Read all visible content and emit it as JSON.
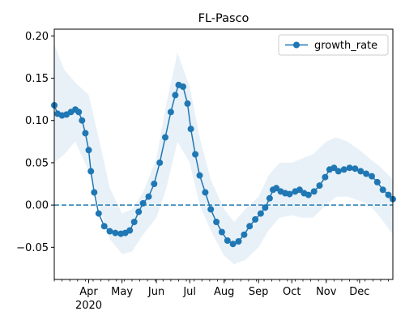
{
  "colors": {
    "series": "#1f77b4",
    "band": "#1f77b4",
    "zero_line": "#1f77b4",
    "axes": "#000000",
    "background": "#ffffff"
  },
  "chart_data": {
    "type": "line",
    "title": "FL-Pasco",
    "xlabel": "",
    "ylabel": "",
    "x_axis": {
      "type": "date",
      "range": [
        "2020-03-01",
        "2020-12-31"
      ],
      "tick_labels": [
        {
          "date": "2020-04-01",
          "label": "Apr",
          "sublabel": "2020"
        },
        {
          "date": "2020-05-01",
          "label": "May"
        },
        {
          "date": "2020-06-01",
          "label": "Jun"
        },
        {
          "date": "2020-07-01",
          "label": "Jul"
        },
        {
          "date": "2020-08-01",
          "label": "Aug"
        },
        {
          "date": "2020-09-01",
          "label": "Sep"
        },
        {
          "date": "2020-10-01",
          "label": "Oct"
        },
        {
          "date": "2020-11-01",
          "label": "Nov"
        },
        {
          "date": "2020-12-01",
          "label": "Dec"
        }
      ]
    },
    "y_axis": {
      "range": [
        -0.088,
        0.208
      ],
      "ticks": [
        -0.05,
        0.0,
        0.05,
        0.1,
        0.15,
        0.2
      ],
      "tick_labels": [
        "−0.05",
        "0.00",
        "0.05",
        "0.10",
        "0.15",
        "0.20"
      ]
    },
    "legend": {
      "position": "top-right",
      "entries": [
        "growth_rate"
      ]
    },
    "reference_line": {
      "y": 0.0,
      "style": "dashed"
    },
    "grid": false,
    "series": [
      {
        "name": "growth_rate",
        "marker": "circle",
        "x": [
          "2020-03-01",
          "2020-03-04",
          "2020-03-08",
          "2020-03-12",
          "2020-03-16",
          "2020-03-20",
          "2020-03-23",
          "2020-03-26",
          "2020-03-29",
          "2020-04-01",
          "2020-04-03",
          "2020-04-06",
          "2020-04-10",
          "2020-04-15",
          "2020-04-20",
          "2020-04-25",
          "2020-04-30",
          "2020-05-04",
          "2020-05-08",
          "2020-05-12",
          "2020-05-16",
          "2020-05-20",
          "2020-05-25",
          "2020-05-30",
          "2020-06-04",
          "2020-06-09",
          "2020-06-14",
          "2020-06-18",
          "2020-06-21",
          "2020-06-25",
          "2020-06-29",
          "2020-07-02",
          "2020-07-06",
          "2020-07-10",
          "2020-07-15",
          "2020-07-20",
          "2020-07-25",
          "2020-07-30",
          "2020-08-04",
          "2020-08-09",
          "2020-08-14",
          "2020-08-19",
          "2020-08-24",
          "2020-08-29",
          "2020-09-03",
          "2020-09-07",
          "2020-09-11",
          "2020-09-14",
          "2020-09-17",
          "2020-09-21",
          "2020-09-25",
          "2020-09-29",
          "2020-10-04",
          "2020-10-08",
          "2020-10-12",
          "2020-10-16",
          "2020-10-21",
          "2020-10-26",
          "2020-10-31",
          "2020-11-04",
          "2020-11-08",
          "2020-11-12",
          "2020-11-17",
          "2020-11-22",
          "2020-11-27",
          "2020-12-02",
          "2020-12-07",
          "2020-12-12",
          "2020-12-17",
          "2020-12-22",
          "2020-12-27",
          "2020-12-31"
        ],
        "y": [
          0.118,
          0.108,
          0.106,
          0.107,
          0.11,
          0.113,
          0.11,
          0.1,
          0.085,
          0.065,
          0.04,
          0.015,
          -0.01,
          -0.025,
          -0.031,
          -0.033,
          -0.034,
          -0.033,
          -0.03,
          -0.02,
          -0.008,
          0.002,
          0.01,
          0.025,
          0.05,
          0.08,
          0.11,
          0.13,
          0.142,
          0.14,
          0.12,
          0.09,
          0.06,
          0.035,
          0.015,
          -0.005,
          -0.02,
          -0.032,
          -0.042,
          -0.046,
          -0.043,
          -0.035,
          -0.025,
          -0.017,
          -0.01,
          -0.003,
          0.008,
          0.018,
          0.02,
          0.016,
          0.014,
          0.013,
          0.016,
          0.018,
          0.014,
          0.012,
          0.016,
          0.023,
          0.033,
          0.042,
          0.044,
          0.04,
          0.042,
          0.044,
          0.043,
          0.04,
          0.037,
          0.034,
          0.027,
          0.018,
          0.012,
          0.007
        ]
      }
    ],
    "confidence_band": {
      "x": [
        "2020-03-01",
        "2020-03-10",
        "2020-03-20",
        "2020-04-01",
        "2020-04-10",
        "2020-04-20",
        "2020-05-01",
        "2020-05-10",
        "2020-05-20",
        "2020-06-01",
        "2020-06-10",
        "2020-06-20",
        "2020-07-01",
        "2020-07-10",
        "2020-07-20",
        "2020-08-01",
        "2020-08-10",
        "2020-08-20",
        "2020-09-01",
        "2020-09-10",
        "2020-09-20",
        "2020-10-01",
        "2020-10-10",
        "2020-10-20",
        "2020-11-01",
        "2020-11-10",
        "2020-11-20",
        "2020-12-01",
        "2020-12-10",
        "2020-12-20",
        "2020-12-31"
      ],
      "lower": [
        0.05,
        0.06,
        0.075,
        0.04,
        0.0,
        -0.04,
        -0.058,
        -0.055,
        -0.035,
        -0.015,
        0.02,
        0.075,
        0.05,
        0.0,
        -0.03,
        -0.06,
        -0.07,
        -0.065,
        -0.05,
        -0.03,
        -0.015,
        -0.012,
        -0.015,
        -0.015,
        0.0,
        0.01,
        0.01,
        0.005,
        0.0,
        -0.015,
        -0.035
      ],
      "upper": [
        0.19,
        0.16,
        0.145,
        0.13,
        0.08,
        0.02,
        -0.01,
        -0.005,
        0.015,
        0.055,
        0.12,
        0.18,
        0.14,
        0.08,
        0.03,
        -0.005,
        -0.02,
        -0.005,
        0.01,
        0.035,
        0.05,
        0.05,
        0.055,
        0.06,
        0.075,
        0.08,
        0.075,
        0.065,
        0.055,
        0.045,
        0.03
      ]
    }
  }
}
